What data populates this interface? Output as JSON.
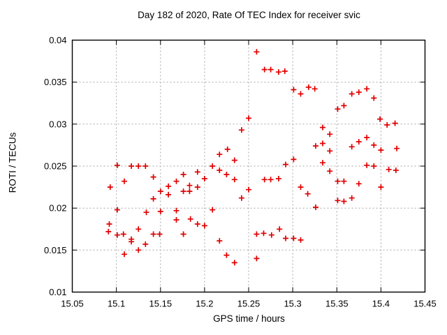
{
  "chart_data": {
    "type": "scatter",
    "title": "Day 182 of 2020, Rate Of TEC Index for receiver svic",
    "xlabel": "GPS time / hours",
    "ylabel": "ROTI / TECUs",
    "xlim": [
      15.05,
      15.45
    ],
    "ylim": [
      0.01,
      0.04
    ],
    "grid": true,
    "legend": "none",
    "marker": "plus",
    "marker_color": "#e10000",
    "xticks": [
      {
        "v": 15.05,
        "label": "15.05"
      },
      {
        "v": 15.1,
        "label": "15.1"
      },
      {
        "v": 15.15,
        "label": "15.15"
      },
      {
        "v": 15.2,
        "label": "15.2"
      },
      {
        "v": 15.25,
        "label": "15.25"
      },
      {
        "v": 15.3,
        "label": "15.3"
      },
      {
        "v": 15.35,
        "label": "15.35"
      },
      {
        "v": 15.4,
        "label": "15.4"
      },
      {
        "v": 15.45,
        "label": "15.45"
      }
    ],
    "yticks": [
      {
        "v": 0.01,
        "label": "0.01"
      },
      {
        "v": 0.015,
        "label": "0.015"
      },
      {
        "v": 0.02,
        "label": "0.02"
      },
      {
        "v": 0.025,
        "label": "0.025"
      },
      {
        "v": 0.03,
        "label": "0.03"
      },
      {
        "v": 0.035,
        "label": "0.035"
      },
      {
        "v": 0.04,
        "label": "0.04"
      }
    ],
    "points": [
      [
        15.091,
        0.0172
      ],
      [
        15.092,
        0.0181
      ],
      [
        15.093,
        0.0225
      ],
      [
        15.101,
        0.0251
      ],
      [
        15.101,
        0.0198
      ],
      [
        15.101,
        0.0168
      ],
      [
        15.108,
        0.0169
      ],
      [
        15.109,
        0.0232
      ],
      [
        15.109,
        0.0145
      ],
      [
        15.117,
        0.025
      ],
      [
        15.117,
        0.0163
      ],
      [
        15.117,
        0.016
      ],
      [
        15.125,
        0.025
      ],
      [
        15.125,
        0.0175
      ],
      [
        15.125,
        0.015
      ],
      [
        15.133,
        0.025
      ],
      [
        15.133,
        0.0157
      ],
      [
        15.134,
        0.0195
      ],
      [
        15.142,
        0.0237
      ],
      [
        15.142,
        0.0211
      ],
      [
        15.142,
        0.0169
      ],
      [
        15.149,
        0.0169
      ],
      [
        15.15,
        0.022
      ],
      [
        15.15,
        0.0196
      ],
      [
        15.159,
        0.0226
      ],
      [
        15.159,
        0.0216
      ],
      [
        15.168,
        0.0232
      ],
      [
        15.168,
        0.0197
      ],
      [
        15.168,
        0.0186
      ],
      [
        15.176,
        0.024
      ],
      [
        15.176,
        0.022
      ],
      [
        15.176,
        0.0169
      ],
      [
        15.183,
        0.0227
      ],
      [
        15.183,
        0.022
      ],
      [
        15.184,
        0.0187
      ],
      [
        15.192,
        0.0243
      ],
      [
        15.192,
        0.0225
      ],
      [
        15.192,
        0.0181
      ],
      [
        15.2,
        0.0235
      ],
      [
        15.2,
        0.0179
      ],
      [
        15.209,
        0.025
      ],
      [
        15.209,
        0.0198
      ],
      [
        15.217,
        0.0264
      ],
      [
        15.217,
        0.0245
      ],
      [
        15.217,
        0.0161
      ],
      [
        15.225,
        0.024
      ],
      [
        15.225,
        0.0144
      ],
      [
        15.226,
        0.027
      ],
      [
        15.234,
        0.0257
      ],
      [
        15.234,
        0.0234
      ],
      [
        15.234,
        0.0135
      ],
      [
        15.242,
        0.0293
      ],
      [
        15.242,
        0.0212
      ],
      [
        15.25,
        0.0307
      ],
      [
        15.25,
        0.0222
      ],
      [
        15.259,
        0.0386
      ],
      [
        15.259,
        0.0169
      ],
      [
        15.259,
        0.014
      ],
      [
        15.267,
        0.017
      ],
      [
        15.268,
        0.0365
      ],
      [
        15.268,
        0.0234
      ],
      [
        15.275,
        0.0365
      ],
      [
        15.275,
        0.0234
      ],
      [
        15.276,
        0.0168
      ],
      [
        15.284,
        0.0362
      ],
      [
        15.284,
        0.0235
      ],
      [
        15.285,
        0.0175
      ],
      [
        15.291,
        0.0363
      ],
      [
        15.292,
        0.0252
      ],
      [
        15.292,
        0.0164
      ],
      [
        15.301,
        0.0341
      ],
      [
        15.301,
        0.0258
      ],
      [
        15.301,
        0.0164
      ],
      [
        15.309,
        0.0336
      ],
      [
        15.309,
        0.0225
      ],
      [
        15.309,
        0.0162
      ],
      [
        15.317,
        0.0217
      ],
      [
        15.318,
        0.0344
      ],
      [
        15.325,
        0.0342
      ],
      [
        15.326,
        0.0274
      ],
      [
        15.326,
        0.0201
      ],
      [
        15.334,
        0.0296
      ],
      [
        15.334,
        0.0277
      ],
      [
        15.334,
        0.0254
      ],
      [
        15.342,
        0.0288
      ],
      [
        15.342,
        0.0268
      ],
      [
        15.342,
        0.0244
      ],
      [
        15.351,
        0.0318
      ],
      [
        15.351,
        0.0232
      ],
      [
        15.351,
        0.0209
      ],
      [
        15.358,
        0.0322
      ],
      [
        15.358,
        0.0232
      ],
      [
        15.358,
        0.0208
      ],
      [
        15.367,
        0.0336
      ],
      [
        15.367,
        0.0273
      ],
      [
        15.367,
        0.0212
      ],
      [
        15.375,
        0.0338
      ],
      [
        15.375,
        0.0279
      ],
      [
        15.375,
        0.0229
      ],
      [
        15.384,
        0.0342
      ],
      [
        15.384,
        0.0284
      ],
      [
        15.384,
        0.0251
      ],
      [
        15.392,
        0.0331
      ],
      [
        15.392,
        0.0275
      ],
      [
        15.392,
        0.025
      ],
      [
        15.399,
        0.0306
      ],
      [
        15.4,
        0.0269
      ],
      [
        15.4,
        0.0225
      ],
      [
        15.407,
        0.0299
      ],
      [
        15.409,
        0.0246
      ],
      [
        15.416,
        0.0301
      ],
      [
        15.417,
        0.0245
      ],
      [
        15.418,
        0.0271
      ]
    ]
  }
}
